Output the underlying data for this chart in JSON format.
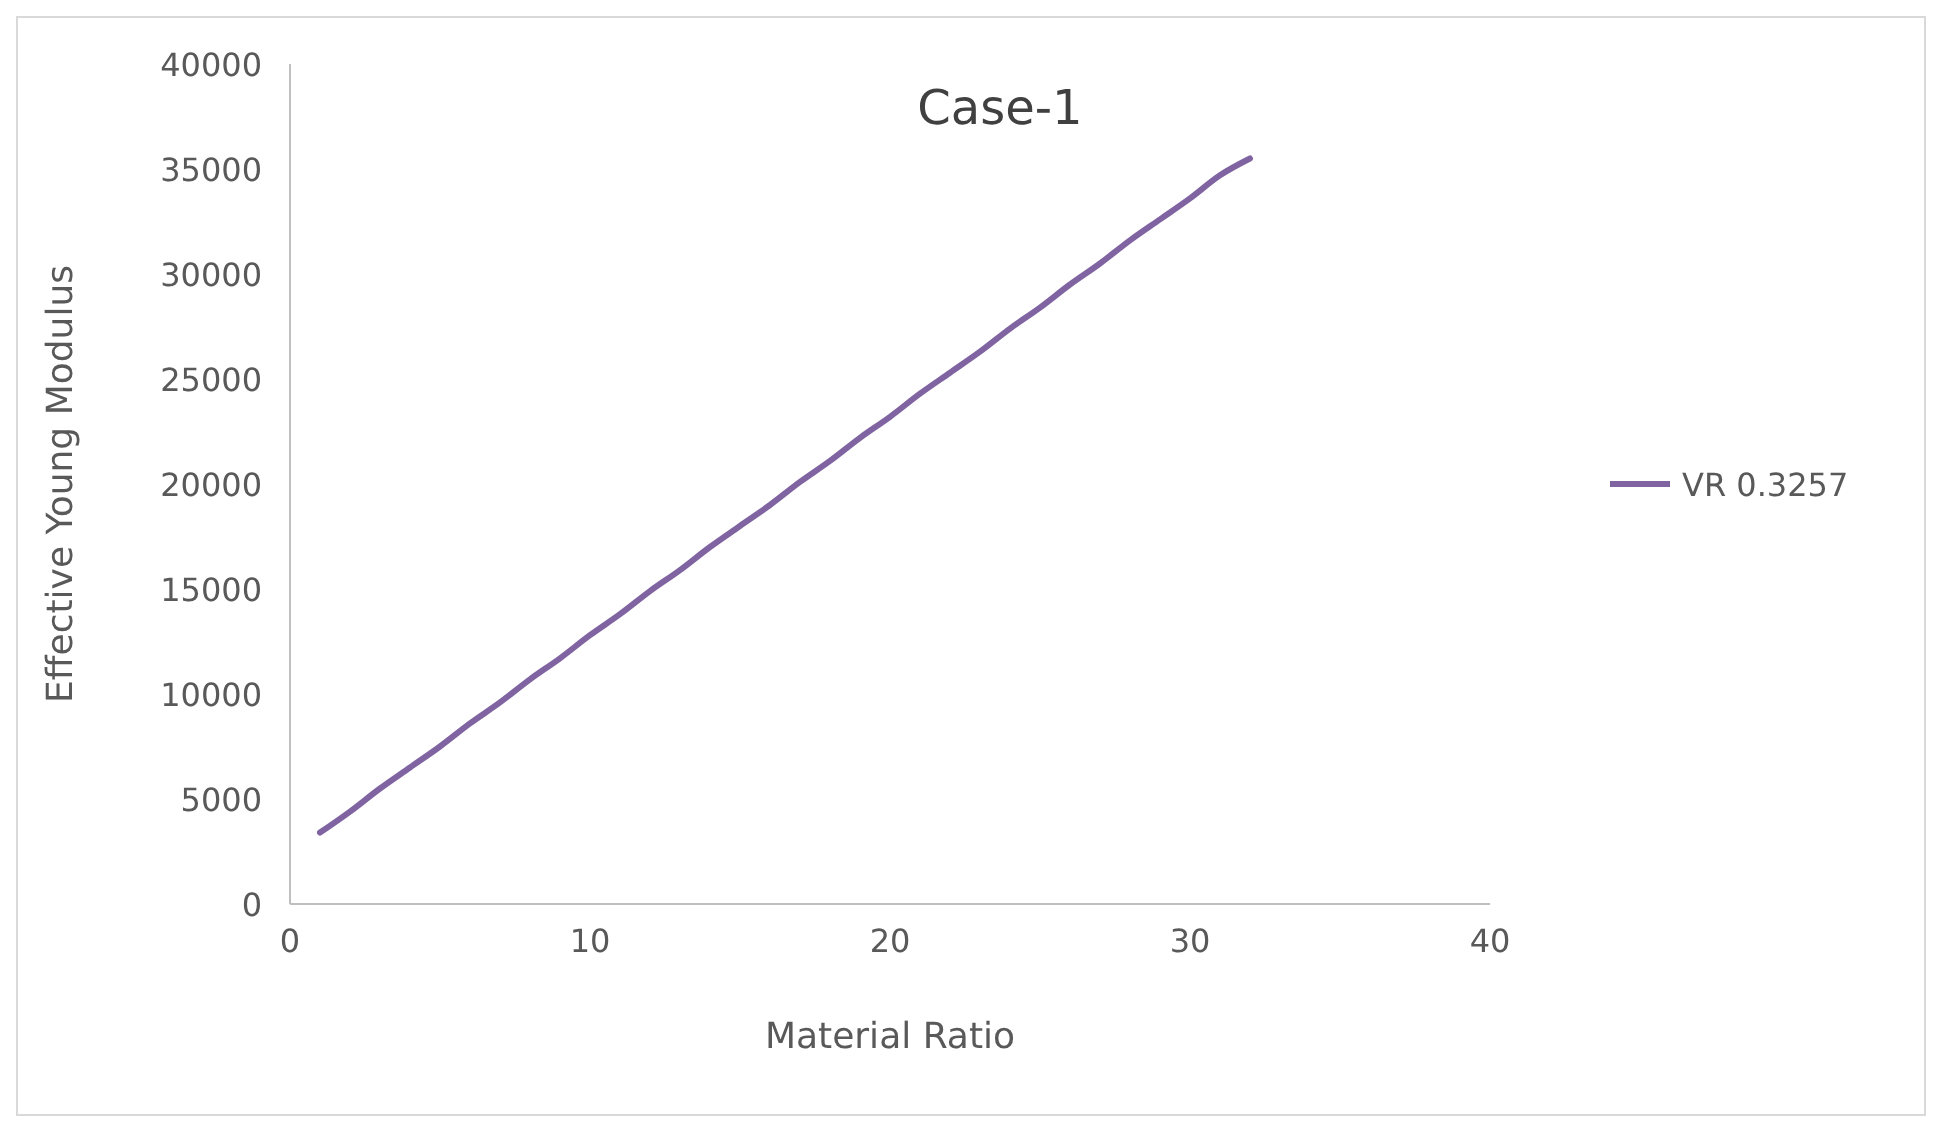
{
  "chart_data": {
    "type": "line",
    "title": "Case-1",
    "xlabel": "Material Ratio",
    "ylabel": "Effective Young Modulus",
    "x": [
      1,
      2,
      3,
      4,
      5,
      6,
      7,
      8,
      9,
      10,
      11,
      12,
      13,
      14,
      15,
      16,
      17,
      18,
      19,
      20,
      21,
      22,
      23,
      24,
      25,
      26,
      27,
      28,
      29,
      30,
      31,
      32
    ],
    "series": [
      {
        "name": "VR 0.3257",
        "color": "#8064a2",
        "values": [
          3400,
          4400,
          5500,
          6500,
          7500,
          8600,
          9600,
          10700,
          11700,
          12800,
          13800,
          14900,
          15900,
          17000,
          18000,
          19000,
          20100,
          21100,
          22200,
          23200,
          24300,
          25300,
          26300,
          27400,
          28400,
          29500,
          30500,
          31600,
          32600,
          33600,
          34700,
          35500
        ]
      }
    ],
    "xlim": [
      0,
      40
    ],
    "xticks": [
      0,
      10,
      20,
      30,
      40
    ],
    "ylim": [
      0,
      40000
    ],
    "yticks": [
      0,
      5000,
      10000,
      15000,
      20000,
      25000,
      30000,
      35000,
      40000
    ],
    "grid": false,
    "legend": "right",
    "marker": "none",
    "line_style": "solid"
  }
}
